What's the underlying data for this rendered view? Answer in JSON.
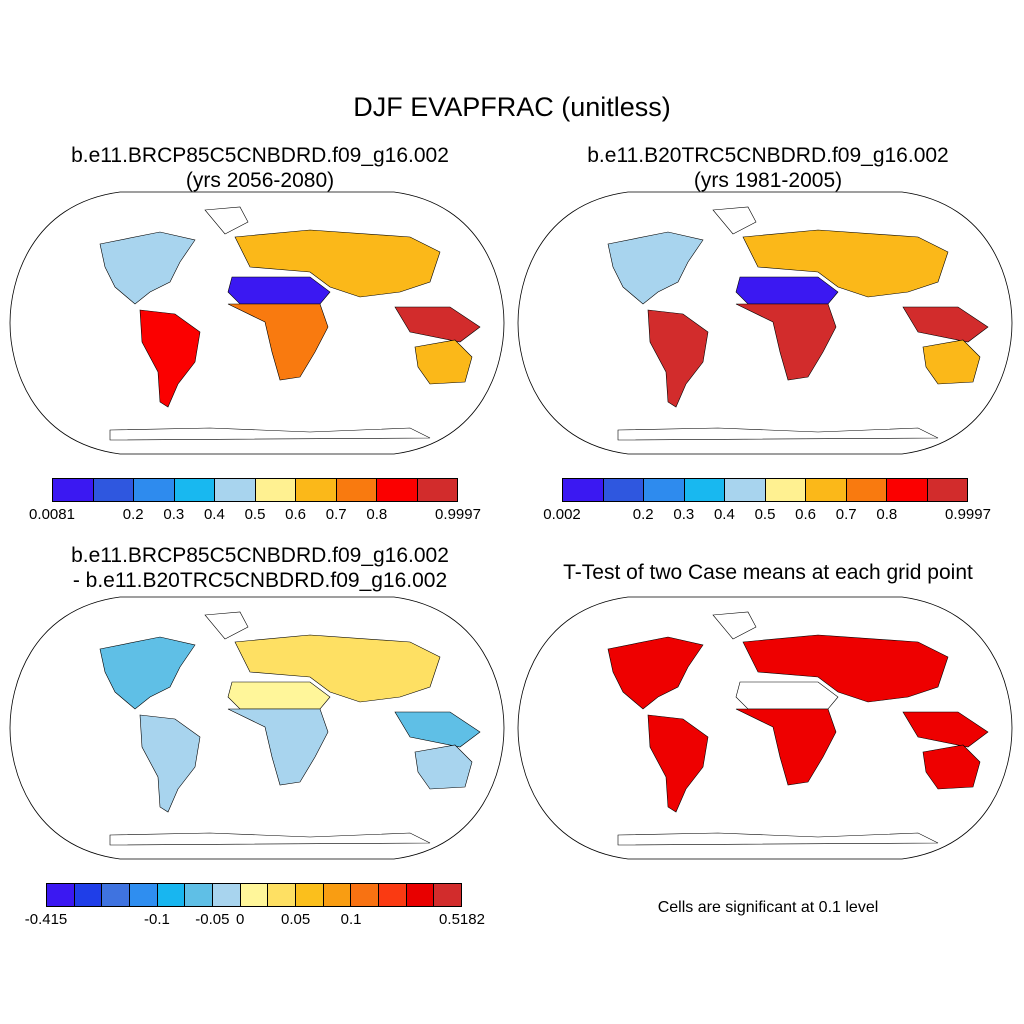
{
  "figure": {
    "title": "DJF EVAPFRAC (unitless)",
    "panels": [
      {
        "title_line1": "b.e11.BRCP85C5CNBDRD.f09_g16.002",
        "title_line2": "(yrs 2056-2080)",
        "colorbar": {
          "colors": [
            "#3b18f2",
            "#2f57df",
            "#2e8bee",
            "#18b8f0",
            "#a8d4ee",
            "#fff191",
            "#fbb819",
            "#f97a0f",
            "#fb0000",
            "#d22c2c"
          ],
          "labels": [
            "0.0081",
            "0.2",
            "0.3",
            "0.4",
            "0.5",
            "0.6",
            "0.7",
            "0.8",
            "0.9997"
          ]
        }
      },
      {
        "title_line1": "b.e11.B20TRC5CNBDRD.f09_g16.002",
        "title_line2": "(yrs 1981-2005)",
        "colorbar": {
          "colors": [
            "#3b18f2",
            "#2f57df",
            "#2e8bee",
            "#18b8f0",
            "#a8d4ee",
            "#fff191",
            "#fbb819",
            "#f97a0f",
            "#fb0000",
            "#d22c2c"
          ],
          "labels": [
            "0.002",
            "0.2",
            "0.3",
            "0.4",
            "0.5",
            "0.6",
            "0.7",
            "0.8",
            "0.9997"
          ]
        }
      },
      {
        "title_line1": "b.e11.BRCP85C5CNBDRD.f09_g16.002",
        "title_line2": "- b.e11.B20TRC5CNBDRD.f09_g16.002",
        "colorbar": {
          "colors": [
            "#3b18f2",
            "#1f3ee8",
            "#3f73e0",
            "#2f8ef0",
            "#18b6f0",
            "#5fbfe6",
            "#a8d4ee",
            "#fff69a",
            "#fee063",
            "#fbbf1c",
            "#f99d12",
            "#f87212",
            "#fa3a12",
            "#e80000",
            "#d22c2c"
          ],
          "labels": [
            "-0.415",
            "-0.1",
            "-0.05",
            "0",
            "0.05",
            "0.1",
            "0.5182"
          ]
        }
      },
      {
        "title": "T-Test of two Case means at each grid point",
        "note": "Cells are significant at 0.1 level",
        "fill_color": "#ee0000"
      }
    ]
  }
}
